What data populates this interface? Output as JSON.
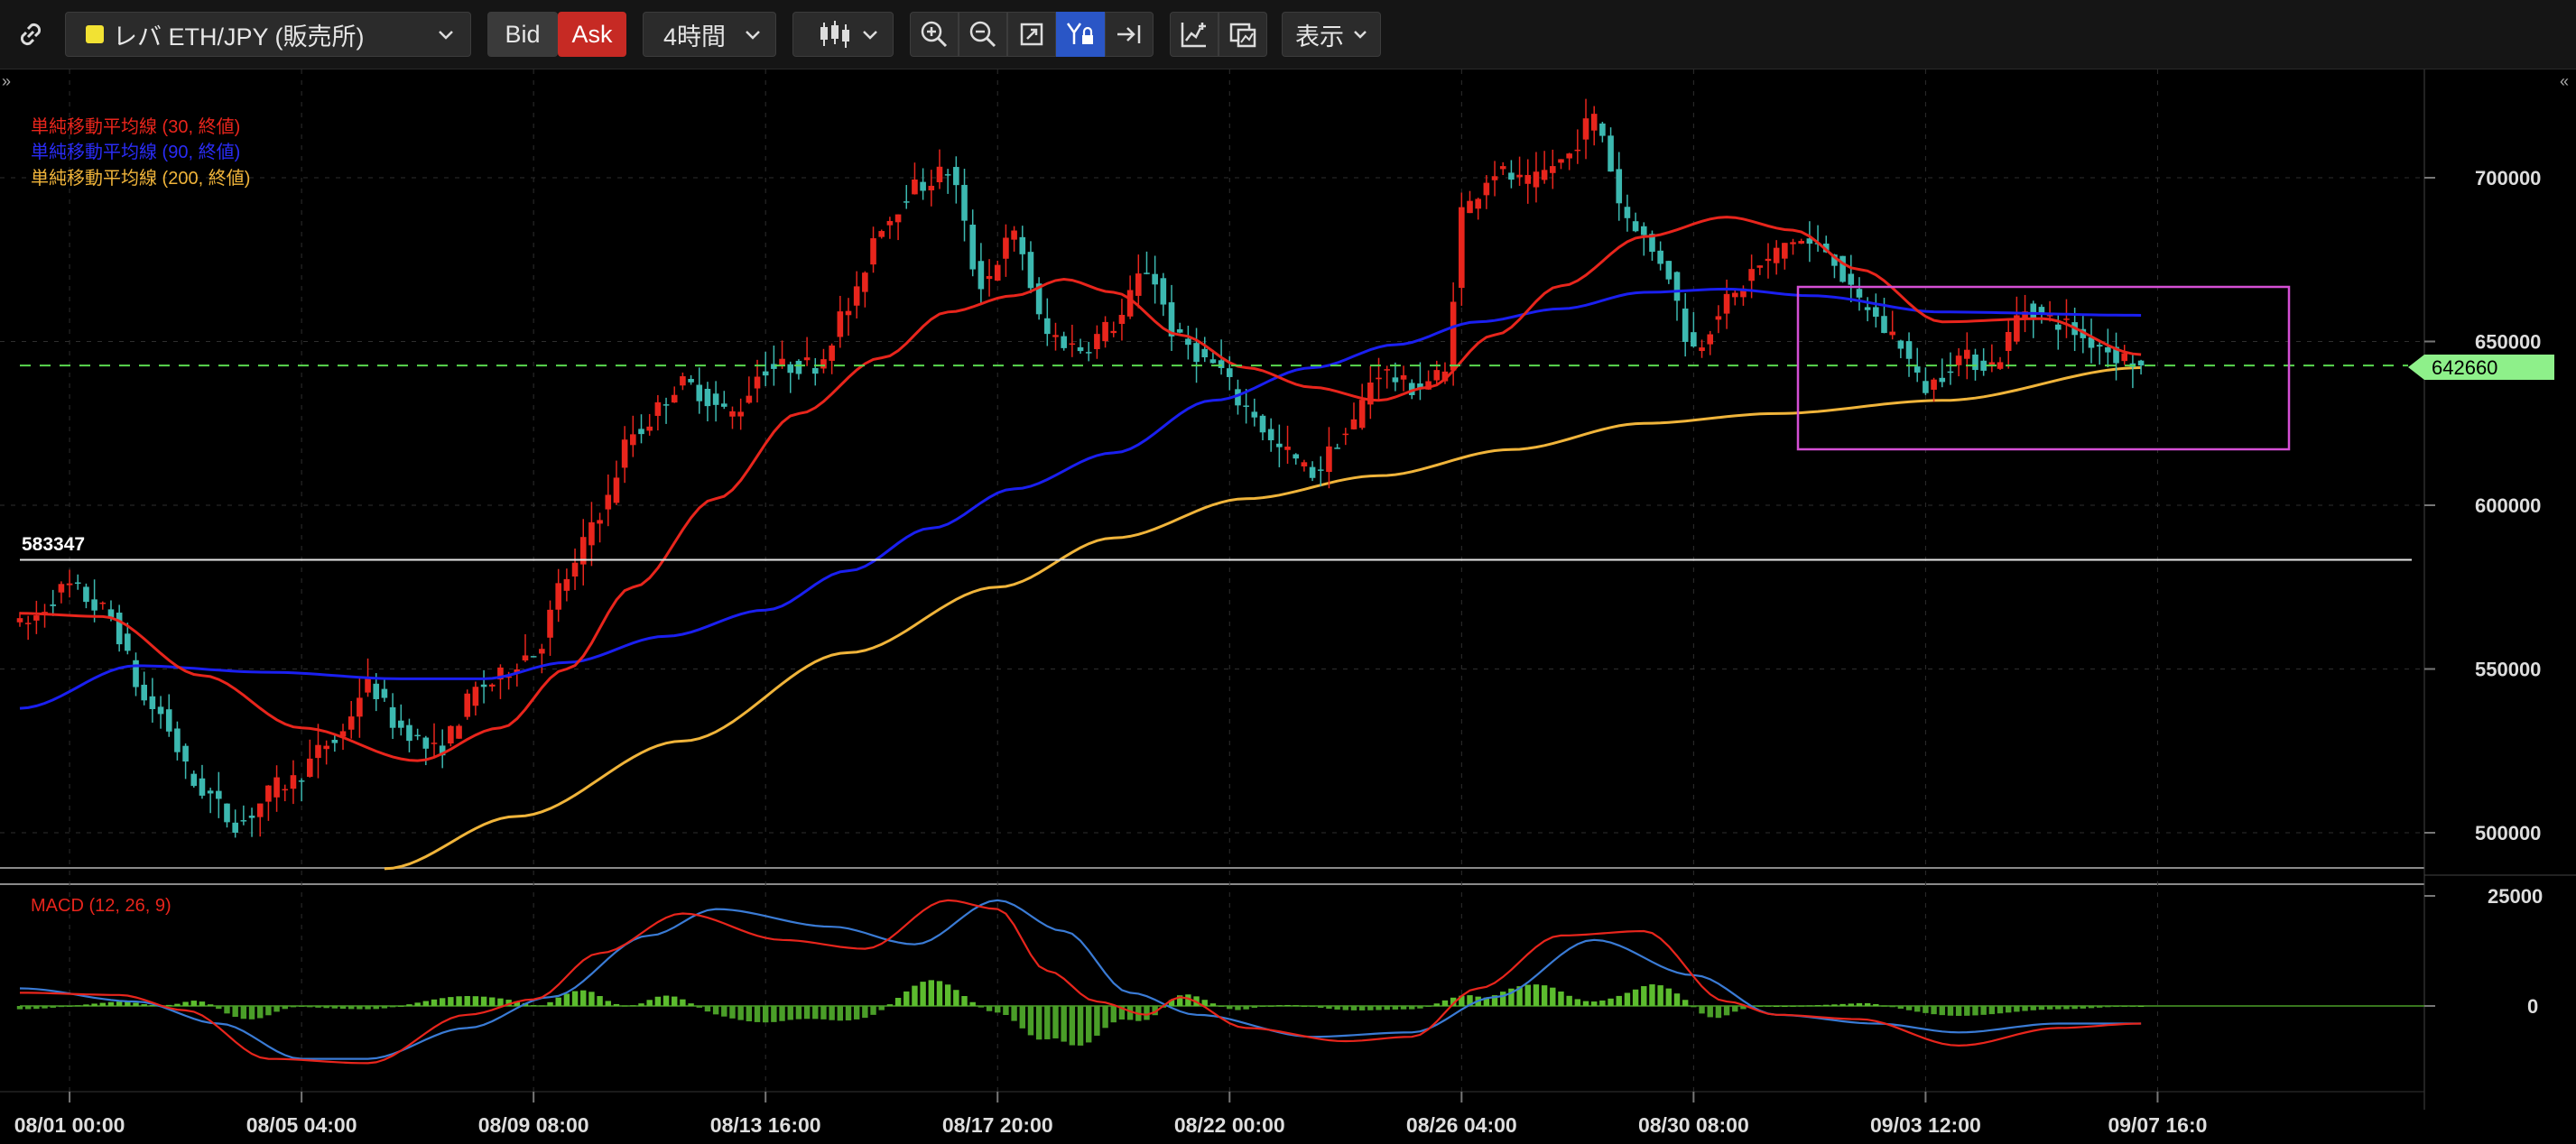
{
  "toolbar": {
    "symbol": "レバ ETH/JPY (販売所)",
    "bid_label": "Bid",
    "ask_label": "Ask",
    "timeframe": "4時間",
    "view_label": "表示",
    "colors": {
      "ask_bg": "#c62a24",
      "active_tool_bg": "#2a56c6",
      "symbol_dot": "#f2e233"
    }
  },
  "chart_data": [
    {
      "type": "candlestick",
      "title": "",
      "x_ticks": [
        "08/01 00:00",
        "08/05 04:00",
        "08/09 08:00",
        "08/13 16:00",
        "08/17 20:00",
        "08/22 00:00",
        "08/26 04:00",
        "08/30 08:00",
        "09/03 12:00",
        "09/07 16:0"
      ],
      "y_ticks": [
        500000,
        550000,
        600000,
        650000,
        700000
      ],
      "ylim": [
        488000,
        732000
      ],
      "legend": [
        {
          "label": "単純移動平均線 (30, 終値)",
          "color": "#e8251c"
        },
        {
          "label": "単純移動平均線 (90, 終値)",
          "color": "#1a1ff0"
        },
        {
          "label": "単純移動平均線 (200, 終値)",
          "color": "#f0b43a"
        }
      ],
      "current_price": 642660,
      "horizontal_line": {
        "value": 583347,
        "label": "583347"
      },
      "candle_colors": {
        "up": "#e8251c",
        "down": "#3cb8b0"
      },
      "close_anchors": [
        [
          0,
          563000
        ],
        [
          6,
          575000
        ],
        [
          10,
          568000
        ],
        [
          16,
          538000
        ],
        [
          22,
          513000
        ],
        [
          26,
          503000
        ],
        [
          32,
          515000
        ],
        [
          38,
          528000
        ],
        [
          42,
          545000
        ],
        [
          46,
          532000
        ],
        [
          50,
          525000
        ],
        [
          56,
          545000
        ],
        [
          62,
          555000
        ],
        [
          66,
          578000
        ],
        [
          70,
          598000
        ],
        [
          74,
          622000
        ],
        [
          80,
          637000
        ],
        [
          86,
          628000
        ],
        [
          90,
          642000
        ],
        [
          96,
          643000
        ],
        [
          100,
          660000
        ],
        [
          104,
          686000
        ],
        [
          108,
          697000
        ],
        [
          112,
          702000
        ],
        [
          116,
          668000
        ],
        [
          120,
          682000
        ],
        [
          124,
          652000
        ],
        [
          128,
          648000
        ],
        [
          132,
          655000
        ],
        [
          136,
          672000
        ],
        [
          140,
          650000
        ],
        [
          144,
          643000
        ],
        [
          148,
          630000
        ],
        [
          152,
          617000
        ],
        [
          156,
          610000
        ],
        [
          160,
          622000
        ],
        [
          164,
          641000
        ],
        [
          168,
          636000
        ],
        [
          172,
          640000
        ],
        [
          174,
          690000
        ],
        [
          178,
          702000
        ],
        [
          182,
          698000
        ],
        [
          186,
          705000
        ],
        [
          190,
          718000
        ],
        [
          194,
          688000
        ],
        [
          198,
          675000
        ],
        [
          202,
          648000
        ],
        [
          206,
          662000
        ],
        [
          210,
          673000
        ],
        [
          214,
          681000
        ],
        [
          218,
          678000
        ],
        [
          222,
          662000
        ],
        [
          226,
          652000
        ],
        [
          230,
          636000
        ],
        [
          234,
          645000
        ],
        [
          238,
          643000
        ],
        [
          242,
          660000
        ],
        [
          246,
          656000
        ],
        [
          250,
          650000
        ],
        [
          254,
          645000
        ],
        [
          256,
          642660
        ]
      ],
      "sma30_anchors": [
        [
          0,
          567000
        ],
        [
          10,
          566000
        ],
        [
          22,
          548000
        ],
        [
          34,
          532000
        ],
        [
          48,
          522000
        ],
        [
          58,
          532000
        ],
        [
          66,
          550000
        ],
        [
          74,
          575000
        ],
        [
          84,
          602000
        ],
        [
          94,
          628000
        ],
        [
          104,
          645000
        ],
        [
          112,
          659000
        ],
        [
          120,
          664000
        ],
        [
          126,
          669000
        ],
        [
          132,
          665000
        ],
        [
          140,
          652000
        ],
        [
          148,
          642000
        ],
        [
          156,
          636000
        ],
        [
          164,
          632000
        ],
        [
          170,
          636000
        ],
        [
          178,
          652000
        ],
        [
          186,
          667000
        ],
        [
          196,
          682000
        ],
        [
          206,
          688000
        ],
        [
          214,
          684000
        ],
        [
          222,
          672000
        ],
        [
          232,
          656000
        ],
        [
          244,
          657000
        ],
        [
          256,
          646000
        ]
      ],
      "sma90_anchors": [
        [
          0,
          538000
        ],
        [
          14,
          551000
        ],
        [
          30,
          549000
        ],
        [
          46,
          547000
        ],
        [
          56,
          547000
        ],
        [
          66,
          552000
        ],
        [
          78,
          560000
        ],
        [
          90,
          568000
        ],
        [
          100,
          580000
        ],
        [
          110,
          593000
        ],
        [
          120,
          605000
        ],
        [
          132,
          616000
        ],
        [
          144,
          632000
        ],
        [
          156,
          642000
        ],
        [
          166,
          649000
        ],
        [
          176,
          656000
        ],
        [
          186,
          660000
        ],
        [
          196,
          665000
        ],
        [
          206,
          666000
        ],
        [
          216,
          664000
        ],
        [
          232,
          659000
        ],
        [
          256,
          658000
        ]
      ],
      "sma200_anchors": [
        [
          44,
          489000
        ],
        [
          60,
          505000
        ],
        [
          80,
          528000
        ],
        [
          100,
          555000
        ],
        [
          118,
          575000
        ],
        [
          132,
          590000
        ],
        [
          148,
          602000
        ],
        [
          164,
          609000
        ],
        [
          180,
          617000
        ],
        [
          196,
          625000
        ],
        [
          212,
          628000
        ],
        [
          232,
          632000
        ],
        [
          256,
          642000
        ]
      ]
    },
    {
      "type": "macd",
      "title": "MACD (12, 26, 9)",
      "y_ticks": [
        0,
        25000
      ],
      "ylim": [
        -18000,
        28000
      ],
      "colors": {
        "macd": "#e8251c",
        "signal": "#3a7bd5",
        "hist_positive": "#5cbc2e",
        "hist_negative": "#4a9e28"
      },
      "macd_anchors": [
        [
          0,
          3000
        ],
        [
          12,
          2500
        ],
        [
          20,
          -1000
        ],
        [
          30,
          -12000
        ],
        [
          42,
          -13000
        ],
        [
          54,
          -2000
        ],
        [
          62,
          1500
        ],
        [
          70,
          12000
        ],
        [
          80,
          21000
        ],
        [
          92,
          15000
        ],
        [
          102,
          13000
        ],
        [
          112,
          24000
        ],
        [
          118,
          22000
        ],
        [
          124,
          8000
        ],
        [
          130,
          1000
        ],
        [
          136,
          -2000
        ],
        [
          140,
          2000
        ],
        [
          148,
          -5000
        ],
        [
          160,
          -8000
        ],
        [
          168,
          -7000
        ],
        [
          176,
          4000
        ],
        [
          186,
          16000
        ],
        [
          196,
          17000
        ],
        [
          206,
          1000
        ],
        [
          212,
          -2000
        ],
        [
          222,
          -3000
        ],
        [
          234,
          -9000
        ],
        [
          246,
          -5000
        ],
        [
          256,
          -4000
        ]
      ],
      "signal_anchors": [
        [
          0,
          4000
        ],
        [
          14,
          1000
        ],
        [
          24,
          -4000
        ],
        [
          34,
          -12000
        ],
        [
          42,
          -12000
        ],
        [
          54,
          -5000
        ],
        [
          64,
          2000
        ],
        [
          76,
          16000
        ],
        [
          84,
          22000
        ],
        [
          98,
          18000
        ],
        [
          108,
          14000
        ],
        [
          118,
          24000
        ],
        [
          126,
          17000
        ],
        [
          134,
          3000
        ],
        [
          142,
          -2000
        ],
        [
          156,
          -7000
        ],
        [
          168,
          -6000
        ],
        [
          178,
          2000
        ],
        [
          190,
          15000
        ],
        [
          202,
          7000
        ],
        [
          212,
          -2000
        ],
        [
          224,
          -4000
        ],
        [
          234,
          -6000
        ],
        [
          246,
          -4000
        ],
        [
          256,
          -4000
        ]
      ]
    }
  ]
}
